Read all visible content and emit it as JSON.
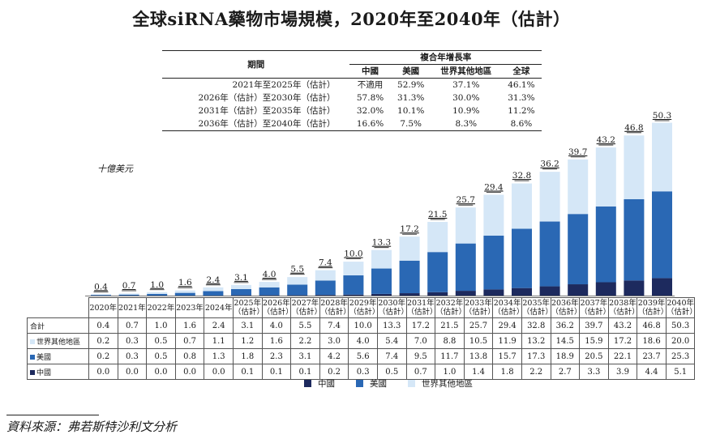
{
  "title": "全球siRNA藥物市場規模，2020年至2040年（估計）",
  "cagr_table": {
    "period_header": "期間",
    "group_header": "複合年增長率",
    "columns": [
      "中國",
      "美國",
      "世界其他地區",
      "全球"
    ],
    "rows": [
      {
        "period": "2021年至2025年（估計）",
        "values": [
          "不適用",
          "52.9%",
          "37.1%",
          "46.1%"
        ]
      },
      {
        "period": "2026年（估計）至2030年（估計）",
        "values": [
          "57.8%",
          "31.3%",
          "30.0%",
          "31.3%"
        ]
      },
      {
        "period": "2031年（估計）至2035年（估計）",
        "values": [
          "32.0%",
          "10.1%",
          "10.9%",
          "11.2%"
        ]
      },
      {
        "period": "2036年（估計）至2040年（估計）",
        "values": [
          "16.6%",
          "7.5%",
          "8.3%",
          "8.6%"
        ]
      }
    ]
  },
  "unit_label": "十億美元",
  "colors": {
    "china": "#1d2a5e",
    "us": "#2a68b4",
    "row": "#d5e7f7"
  },
  "chart_data": {
    "type": "bar",
    "stacked": true,
    "title": "全球siRNA藥物市場規模，2020年至2040年（估計）",
    "ylabel": "十億美元",
    "categories": [
      "2020年",
      "2021年",
      "2022年",
      "2023年",
      "2024年",
      "2025年（估計）",
      "2026年（估計）",
      "2027年（估計）",
      "2028年（估計）",
      "2029年（估計）",
      "2030年（估計）",
      "2031年（估計）",
      "2032年（估計）",
      "2033年（估計）",
      "2034年（估計）",
      "2035年（估計）",
      "2036年（估計）",
      "2037年（估計）",
      "2038年（估計）",
      "2039年（估計）",
      "2040年（估計）"
    ],
    "totals": [
      0.4,
      0.7,
      1.0,
      1.6,
      2.4,
      3.1,
      4.0,
      5.5,
      7.4,
      10.0,
      13.3,
      17.2,
      21.5,
      25.7,
      29.4,
      32.8,
      36.2,
      39.7,
      43.2,
      46.8,
      50.3
    ],
    "series": [
      {
        "name": "中國",
        "key": "china",
        "values": [
          0.0,
          0.0,
          0.0,
          0.0,
          0.0,
          0.1,
          0.1,
          0.1,
          0.2,
          0.3,
          0.5,
          0.7,
          1.0,
          1.4,
          1.8,
          2.2,
          2.7,
          3.3,
          3.9,
          4.4,
          5.1
        ]
      },
      {
        "name": "美國",
        "key": "us",
        "values": [
          0.2,
          0.3,
          0.5,
          0.8,
          1.3,
          1.8,
          2.3,
          3.1,
          4.2,
          5.6,
          7.4,
          9.5,
          11.7,
          13.8,
          15.7,
          17.3,
          18.9,
          20.5,
          22.1,
          23.7,
          25.3
        ]
      },
      {
        "name": "世界其他地區",
        "key": "row",
        "values": [
          0.2,
          0.3,
          0.5,
          0.7,
          1.1,
          1.2,
          1.6,
          2.2,
          3.0,
          4.0,
          5.4,
          7.0,
          8.8,
          10.5,
          11.9,
          13.2,
          14.5,
          15.9,
          17.2,
          18.6,
          20.0
        ]
      }
    ],
    "ylim": [
      0,
      50.3
    ]
  },
  "data_table": {
    "year_labels": [
      [
        "2020年",
        ""
      ],
      [
        "2021年",
        ""
      ],
      [
        "2022年",
        ""
      ],
      [
        "2023年",
        ""
      ],
      [
        "2024年",
        ""
      ],
      [
        "2025年",
        "（估計）"
      ],
      [
        "2026年",
        "（估計）"
      ],
      [
        "2027年",
        "（估計）"
      ],
      [
        "2028年",
        "（估計）"
      ],
      [
        "2029年",
        "（估計）"
      ],
      [
        "2030年",
        "（估計）"
      ],
      [
        "2031年",
        "（估計）"
      ],
      [
        "2032年",
        "（估計）"
      ],
      [
        "2033年",
        "（估計）"
      ],
      [
        "2034年",
        "（估計）"
      ],
      [
        "2035年",
        "（估計）"
      ],
      [
        "2036年",
        "（估計）"
      ],
      [
        "2037年",
        "（估計）"
      ],
      [
        "2038年",
        "（估計）"
      ],
      [
        "2039年",
        "（估計）"
      ],
      [
        "2040年",
        "（估計）"
      ]
    ],
    "row_labels": {
      "total": "合計",
      "row": "世界其他地區",
      "us": "美國",
      "china": "中國"
    }
  },
  "legend": [
    "中國",
    "美國",
    "世界其他地區"
  ],
  "source": "資料來源：弗若斯特沙利文分析"
}
